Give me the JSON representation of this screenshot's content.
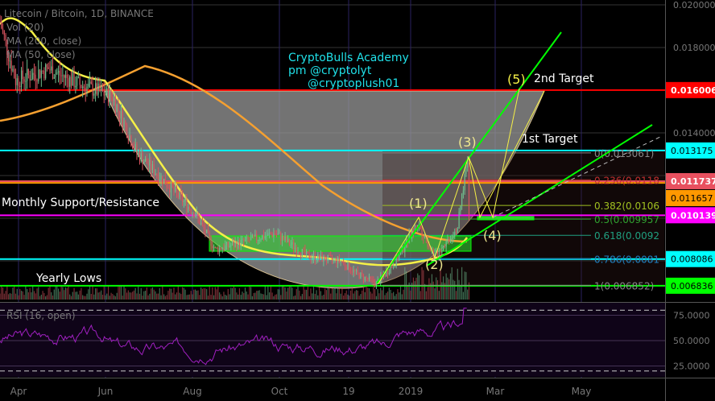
{
  "header": {
    "title": "Litecoin / Bitcoin, 1D, BINANCE",
    "indicators": [
      "Vol (20)",
      "MA (200, close)",
      "MA (50, close)"
    ]
  },
  "rsi": {
    "label": "RSI (16, open)",
    "ticks": [
      "75.0000",
      "50.0000",
      "25.0000"
    ]
  },
  "annotations": {
    "watermark": [
      "CryptoBulls Academy",
      "pm @cryptolyt",
      "@cryptoplush01"
    ],
    "monthly": "Monthly Support/Resistance",
    "yearly": "Yearly Lows",
    "target1": "1st Target",
    "target2": "2nd Target",
    "waves": [
      "(1)",
      "(2)",
      "(3)",
      "(4)",
      "(5)"
    ]
  },
  "colors": {
    "up": "#6fbf8f",
    "down": "#d9545f",
    "ma50": "#f5f047",
    "ma200": "#f5a030",
    "rsi": "#a020c0",
    "accent_green": "#00ff00"
  },
  "chart_data": {
    "type": "candlestick",
    "title": "Litecoin / Bitcoin, 1D, BINANCE",
    "ylim": [
      0.0059,
      0.0202
    ],
    "y_ticks": [
      "0.020000",
      "0.018000",
      "0.014000"
    ],
    "x_ticks": [
      "Apr",
      "Jun",
      "Aug",
      "Oct",
      "19",
      "2019",
      "Mar",
      "May"
    ],
    "price_path": [
      [
        "2018-03-19",
        0.0192
      ],
      [
        "2018-03-30",
        0.01645
      ],
      [
        "2018-04-22",
        0.017
      ],
      [
        "2018-05-14",
        0.01626
      ],
      [
        "2018-06-06",
        0.0157
      ],
      [
        "2018-06-23",
        0.01306
      ],
      [
        "2018-07-10",
        0.0119
      ],
      [
        "2018-08-03",
        0.0102
      ],
      [
        "2018-08-17",
        0.00853
      ],
      [
        "2018-09-06",
        0.0089
      ],
      [
        "2018-09-28",
        0.0093
      ],
      [
        "2018-10-21",
        0.0082
      ],
      [
        "2018-11-13",
        0.008
      ],
      [
        "2018-11-24",
        0.0074
      ],
      [
        "2018-12-08",
        0.00694
      ],
      [
        "2018-12-22",
        0.008
      ],
      [
        "2019-01-06",
        0.0098
      ],
      [
        "2019-01-18",
        0.0082
      ],
      [
        "2019-02-03",
        0.0096
      ],
      [
        "2019-02-10",
        0.0129
      ],
      [
        "2019-02-11",
        0.0101
      ]
    ],
    "horizontal_levels": [
      {
        "price": 0.016006,
        "label": "0.016006",
        "color": "#ff0000"
      },
      {
        "price": 0.013175,
        "label": "0.013175",
        "color": "#00ffff"
      },
      {
        "price": 0.011737,
        "label": "0.011737",
        "color": "#e8505f"
      },
      {
        "price": 0.011657,
        "label": "0.011657",
        "color": "#ff9800"
      },
      {
        "price": 0.010139,
        "label": "0.010139",
        "color": "#ff00ff"
      },
      {
        "price": 0.008086,
        "label": "0.008086",
        "color": "#00ffff"
      },
      {
        "price": 0.006836,
        "label": "0.006836",
        "color": "#00ff00"
      }
    ],
    "fib_levels": [
      {
        "price": 0.013061,
        "label": "0(0.013061)",
        "color": "#888888"
      },
      {
        "price": 0.0118,
        "label": "0.236(0.0118",
        "color": "#c03030"
      },
      {
        "price": 0.0106,
        "label": "0.382(0.0106",
        "color": "#a0c020"
      },
      {
        "price": 0.009957,
        "label": "0.5(0.009957",
        "color": "#30a030"
      },
      {
        "price": 0.0092,
        "label": "0.618(0.0092",
        "color": "#20a080"
      },
      {
        "price": 0.0081,
        "label": "0.786(0.0081",
        "color": "#2080c0"
      },
      {
        "price": 0.006852,
        "label": "1(0.006852)",
        "color": "#888888"
      }
    ],
    "rsi_bands": [
      80,
      20
    ]
  }
}
